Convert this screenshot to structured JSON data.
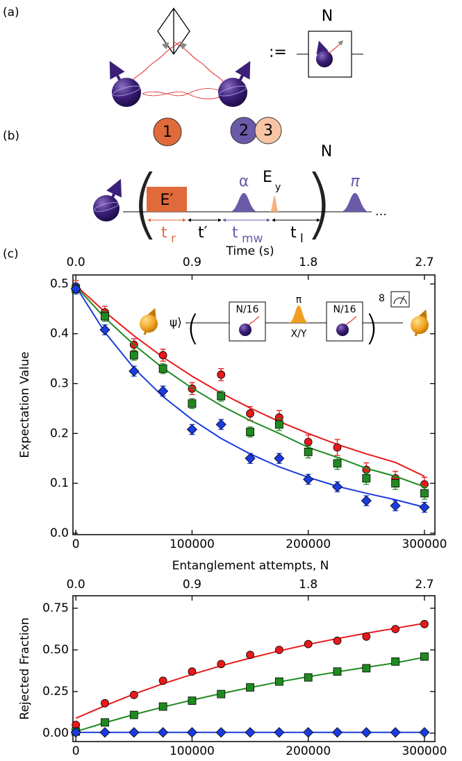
{
  "panel_a": {
    "label": "(a)",
    "box_label": "N",
    "define": ":="
  },
  "panel_b": {
    "label": "(b)",
    "step1": "1",
    "step2": "2",
    "step3": "3",
    "repeat": "N",
    "pulse_e": "E′",
    "pulse_alpha": "α",
    "pulse_ey": "E",
    "pulse_ey_sub": "y",
    "pulse_pi": "π",
    "t_r": "t",
    "t_r_sub": "r",
    "t_prime": "t′",
    "t_mw": "t",
    "t_mw_sub": "mw",
    "t_l": "t",
    "t_l_sub": "l"
  },
  "panel_c": {
    "label": "(c)"
  },
  "inset": {
    "state": "ψ⟩",
    "box1": "N/16",
    "pi": "π",
    "axis": "X/Y",
    "box2": "N/16",
    "repeat": "8"
  },
  "chart_data": [
    {
      "type": "scatter",
      "ylabel": "Expectation Value",
      "xlabel": "Entanglement attempts, N",
      "x2label": "Time (s)",
      "x": [
        0,
        25000,
        50000,
        75000,
        100000,
        125000,
        150000,
        175000,
        200000,
        225000,
        250000,
        275000,
        300000
      ],
      "xlim": [
        -2500,
        309000
      ],
      "xticks": [
        0,
        100000,
        200000,
        300000
      ],
      "x2lim": [
        -0.0225,
        2.781
      ],
      "x2ticks": [
        {
          "value": 0,
          "label": "0.0"
        },
        0.9,
        1.8,
        2.7
      ],
      "ylim": [
        -0.003,
        0.518
      ],
      "yticks": [
        {
          "value": 0,
          "label": "0.0"
        },
        0.1,
        0.2,
        0.3,
        0.4,
        0.5
      ],
      "series": [
        {
          "color": "#e8191a",
          "marker": "circle",
          "values": [
            0.495,
            0.443,
            0.378,
            0.357,
            0.29,
            0.318,
            0.24,
            0.232,
            0.183,
            0.172,
            0.127,
            0.11,
            0.098
          ],
          "errors": [
            0.012,
            0.012,
            0.012,
            0.012,
            0.012,
            0.012,
            0.014,
            0.014,
            0.014,
            0.016,
            0.014,
            0.014,
            0.014
          ],
          "fit": [
            0.497,
            0.444,
            0.396,
            0.353,
            0.315,
            0.281,
            0.251,
            0.224,
            0.2,
            0.178,
            0.159,
            0.142,
            0.114
          ]
        },
        {
          "color": "#1f8a1f",
          "marker": "square",
          "values": [
            0.49,
            0.435,
            0.357,
            0.33,
            0.26,
            0.275,
            0.203,
            0.218,
            0.163,
            0.14,
            0.11,
            0.1,
            0.08
          ],
          "errors": [
            0.01,
            0.01,
            0.01,
            0.01,
            0.01,
            0.01,
            0.01,
            0.012,
            0.012,
            0.012,
            0.012,
            0.012,
            0.012
          ],
          "fit": [
            0.495,
            0.432,
            0.378,
            0.331,
            0.291,
            0.256,
            0.226,
            0.2,
            0.172,
            0.152,
            0.13,
            0.114,
            0.093
          ]
        },
        {
          "color": "#1a3be0",
          "marker": "diamond",
          "values": [
            0.49,
            0.408,
            0.325,
            0.285,
            0.208,
            0.218,
            0.15,
            0.15,
            0.108,
            0.093,
            0.065,
            0.055,
            0.052
          ],
          "errors": [
            0.01,
            0.01,
            0.01,
            0.01,
            0.01,
            0.01,
            0.01,
            0.01,
            0.01,
            0.01,
            0.01,
            0.01,
            0.01
          ],
          "fit": [
            0.495,
            0.403,
            0.331,
            0.274,
            0.228,
            0.19,
            0.159,
            0.133,
            0.112,
            0.094,
            0.08,
            0.067,
            0.052
          ]
        }
      ]
    },
    {
      "type": "scatter",
      "ylabel": "Rejected Fraction",
      "x": [
        0,
        25000,
        50000,
        75000,
        100000,
        125000,
        150000,
        175000,
        200000,
        225000,
        250000,
        275000,
        300000
      ],
      "xlim": [
        -2500,
        309000
      ],
      "xticks": [
        0,
        100000,
        200000,
        300000
      ],
      "x2lim": [
        -0.0225,
        2.781
      ],
      "x2ticks": [
        {
          "value": 0,
          "label": "0.0"
        },
        0.9,
        1.8,
        2.7
      ],
      "ylim": [
        -0.05,
        0.825
      ],
      "yticks": [
        {
          "value": 0,
          "label": "0.00"
        },
        0.25,
        {
          "value": 0.5,
          "label": "0.50"
        },
        0.75
      ],
      "series": [
        {
          "color": "#e8191a",
          "marker": "circle",
          "values": [
            0.05,
            0.18,
            0.23,
            0.315,
            0.37,
            0.415,
            0.47,
            0.5,
            0.535,
            0.555,
            0.58,
            0.625,
            0.655
          ],
          "fit": [
            0.09,
            0.165,
            0.235,
            0.297,
            0.353,
            0.405,
            0.451,
            0.494,
            0.533,
            0.568,
            0.6,
            0.63,
            0.66
          ]
        },
        {
          "color": "#1f8a1f",
          "marker": "square",
          "values": [
            0.01,
            0.065,
            0.11,
            0.16,
            0.195,
            0.235,
            0.275,
            0.31,
            0.335,
            0.37,
            0.39,
            0.43,
            0.46
          ],
          "fit": [
            0.01,
            0.063,
            0.112,
            0.157,
            0.199,
            0.238,
            0.274,
            0.308,
            0.339,
            0.368,
            0.396,
            0.422,
            0.456
          ]
        },
        {
          "color": "#1a3be0",
          "marker": "diamond",
          "values": [
            0.005,
            0.005,
            0.005,
            0.005,
            0.005,
            0.005,
            0.005,
            0.005,
            0.005,
            0.005,
            0.005,
            0.005,
            0.005
          ],
          "fit": [
            0.005,
            0.005,
            0.005,
            0.005,
            0.005,
            0.005,
            0.005,
            0.005,
            0.005,
            0.005,
            0.005,
            0.005,
            0.005
          ]
        }
      ]
    }
  ]
}
